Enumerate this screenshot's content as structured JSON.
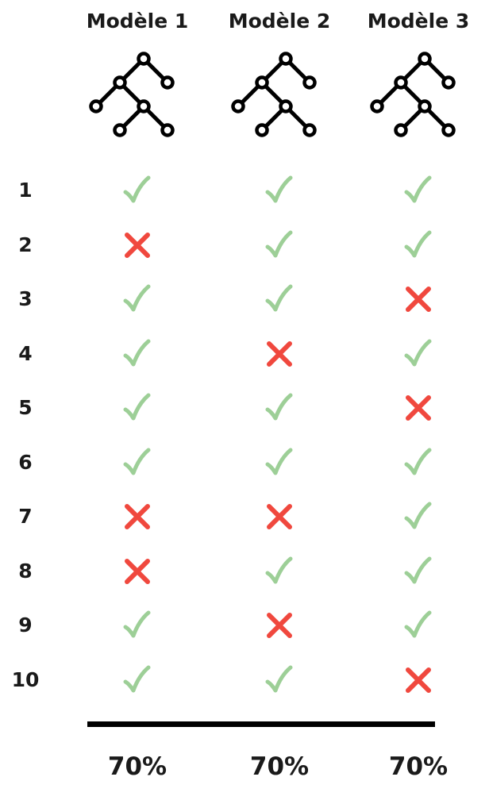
{
  "colors": {
    "check": "#9dcf97",
    "cross": "#f0483e",
    "ink": "#000000"
  },
  "icons": {
    "model": "decision-tree-icon",
    "pass": "check-icon",
    "fail": "cross-icon"
  },
  "models": [
    {
      "title": "Modèle 1",
      "score": "70%",
      "results": [
        true,
        false,
        true,
        true,
        true,
        true,
        false,
        false,
        true,
        true
      ]
    },
    {
      "title": "Modèle 2",
      "score": "70%",
      "results": [
        true,
        true,
        true,
        false,
        true,
        true,
        false,
        true,
        false,
        true
      ]
    },
    {
      "title": "Modèle 3",
      "score": "70%",
      "results": [
        true,
        true,
        false,
        true,
        false,
        true,
        true,
        true,
        true,
        false
      ]
    }
  ],
  "rows": [
    "1",
    "2",
    "3",
    "4",
    "5",
    "6",
    "7",
    "8",
    "9",
    "10"
  ]
}
